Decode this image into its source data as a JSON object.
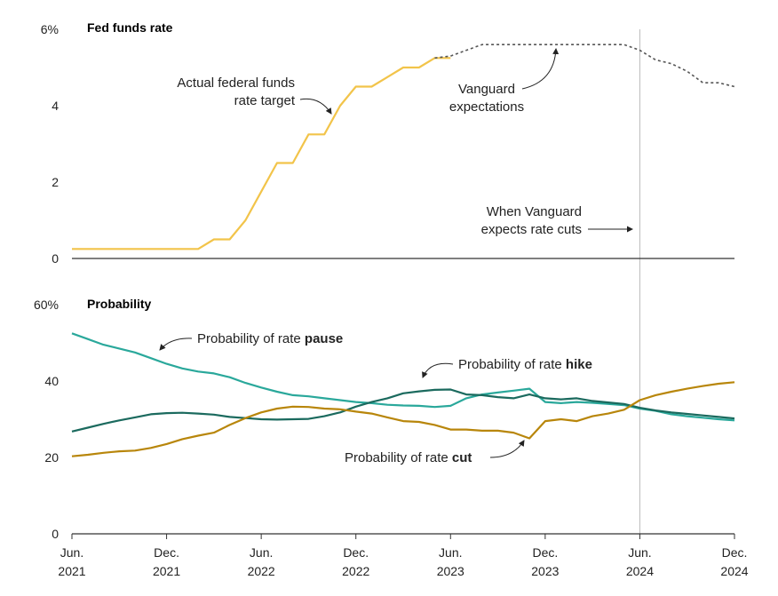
{
  "colors": {
    "fed_actual": "#F2C44A",
    "fed_expected": "#555555",
    "pause": "#2AA89B",
    "hike": "#1B6A5E",
    "cut": "#B8860B",
    "axis": "#333333",
    "vline": "#BBBBBB"
  },
  "x_axis": {
    "ticks": [
      {
        "label": [
          "Jun.",
          "2021"
        ],
        "month": 0
      },
      {
        "label": [
          "Dec.",
          "2021"
        ],
        "month": 6
      },
      {
        "label": [
          "Jun.",
          "2022"
        ],
        "month": 12
      },
      {
        "label": [
          "Dec.",
          "2022"
        ],
        "month": 18
      },
      {
        "label": [
          "Jun.",
          "2023"
        ],
        "month": 24
      },
      {
        "label": [
          "Dec.",
          "2023"
        ],
        "month": 30
      },
      {
        "label": [
          "Jun.",
          "2024"
        ],
        "month": 36
      },
      {
        "label": [
          "Dec.",
          "2024"
        ],
        "month": 42
      }
    ]
  },
  "chart_data": [
    {
      "type": "line",
      "title": "Fed funds rate",
      "ylim": [
        0,
        6
      ],
      "y_ticks": [
        "6%",
        "4",
        "2",
        "0"
      ],
      "y_tick_values": [
        6,
        4,
        2,
        0
      ],
      "series": [
        {
          "key": "actual",
          "x": [
            0,
            1,
            2,
            3,
            4,
            5,
            6,
            7,
            8,
            9,
            10,
            11,
            12,
            13,
            14,
            15,
            16,
            17,
            18,
            19,
            20,
            21,
            22,
            23,
            24
          ],
          "values": [
            0.25,
            0.25,
            0.25,
            0.25,
            0.25,
            0.25,
            0.25,
            0.25,
            0.25,
            0.5,
            0.5,
            1.0,
            1.75,
            2.5,
            2.5,
            3.25,
            3.25,
            4.0,
            4.5,
            4.5,
            4.75,
            5.0,
            5.0,
            5.25,
            5.25
          ]
        },
        {
          "key": "expected",
          "x": [
            23,
            24,
            25,
            26,
            27,
            28,
            29,
            30,
            31,
            32,
            33,
            34,
            35,
            36,
            37,
            38,
            39,
            40,
            41,
            42
          ],
          "values": [
            5.25,
            5.3,
            5.45,
            5.6,
            5.6,
            5.6,
            5.6,
            5.6,
            5.6,
            5.6,
            5.6,
            5.6,
            5.6,
            5.45,
            5.2,
            5.1,
            4.9,
            4.6,
            4.6,
            4.5
          ]
        }
      ],
      "annotations": {
        "actual": [
          "Actual federal funds",
          "rate target"
        ],
        "expected": [
          "Vanguard",
          "expectations"
        ],
        "cuts": [
          "When Vanguard",
          "expects rate cuts"
        ]
      }
    },
    {
      "type": "line",
      "title": "Probability",
      "ylim": [
        0,
        60
      ],
      "y_ticks": [
        "60%",
        "40",
        "20",
        "0"
      ],
      "y_tick_values": [
        60,
        40,
        20,
        0
      ],
      "series": [
        {
          "key": "pause",
          "x": [
            0,
            1,
            2,
            3,
            4,
            5,
            6,
            7,
            8,
            9,
            10,
            11,
            12,
            13,
            14,
            15,
            16,
            17,
            18,
            19,
            20,
            21,
            22,
            23,
            24,
            25,
            26,
            27,
            28,
            29,
            30,
            31,
            32,
            33,
            34,
            35,
            36,
            37,
            38,
            39,
            40,
            41,
            42
          ],
          "values": [
            52.5,
            51,
            49.5,
            48.5,
            47.5,
            46,
            44.5,
            43.3,
            42.5,
            42,
            41,
            39.5,
            38.3,
            37.2,
            36.3,
            36,
            35.5,
            35,
            34.5,
            34.2,
            33.8,
            33.6,
            33.5,
            33.2,
            33.5,
            35.5,
            36.5,
            37,
            37.5,
            38,
            34.5,
            34.2,
            34.5,
            34.3,
            34,
            33.7,
            32.8,
            32.2,
            31.3,
            30.8,
            30.4,
            30,
            29.7
          ]
        },
        {
          "key": "hike",
          "x": [
            0,
            1,
            2,
            3,
            4,
            5,
            6,
            7,
            8,
            9,
            10,
            11,
            12,
            13,
            14,
            15,
            16,
            17,
            18,
            19,
            20,
            21,
            22,
            23,
            24,
            25,
            26,
            27,
            28,
            29,
            30,
            31,
            32,
            33,
            34,
            35,
            36,
            37,
            38,
            39,
            40,
            41,
            42
          ],
          "values": [
            26.8,
            27.8,
            28.8,
            29.7,
            30.5,
            31.3,
            31.6,
            31.7,
            31.5,
            31.2,
            30.6,
            30.3,
            30,
            29.9,
            30,
            30.1,
            30.8,
            31.8,
            33.3,
            34.5,
            35.5,
            36.8,
            37.3,
            37.7,
            37.8,
            36.5,
            36.3,
            35.8,
            35.5,
            36.5,
            35.5,
            35.2,
            35.5,
            34.8,
            34.4,
            34,
            33,
            32.3,
            31.8,
            31.4,
            31,
            30.6,
            30.2
          ]
        },
        {
          "key": "cut",
          "x": [
            0,
            1,
            2,
            3,
            4,
            5,
            6,
            7,
            8,
            9,
            10,
            11,
            12,
            13,
            14,
            15,
            16,
            17,
            18,
            19,
            20,
            21,
            22,
            23,
            24,
            25,
            26,
            27,
            28,
            29,
            30,
            31,
            32,
            33,
            34,
            35,
            36,
            37,
            38,
            39,
            40,
            41,
            42
          ],
          "values": [
            20.3,
            20.7,
            21.2,
            21.6,
            21.8,
            22.5,
            23.5,
            24.8,
            25.7,
            26.5,
            28.5,
            30.3,
            31.8,
            32.8,
            33.3,
            33.2,
            32.8,
            32.6,
            32,
            31.5,
            30.5,
            29.5,
            29.3,
            28.5,
            27.3,
            27.3,
            27,
            27,
            26.5,
            25,
            29.5,
            30,
            29.5,
            30.8,
            31.5,
            32.5,
            35,
            36.3,
            37.2,
            38,
            38.7,
            39.3,
            39.7
          ]
        }
      ],
      "annotations": {
        "pause": {
          "text": "Probability of rate ",
          "bold": "pause"
        },
        "hike": {
          "text": "Probability of rate ",
          "bold": "hike"
        },
        "cut": {
          "text": "Probability of rate ",
          "bold": "cut"
        }
      }
    }
  ]
}
